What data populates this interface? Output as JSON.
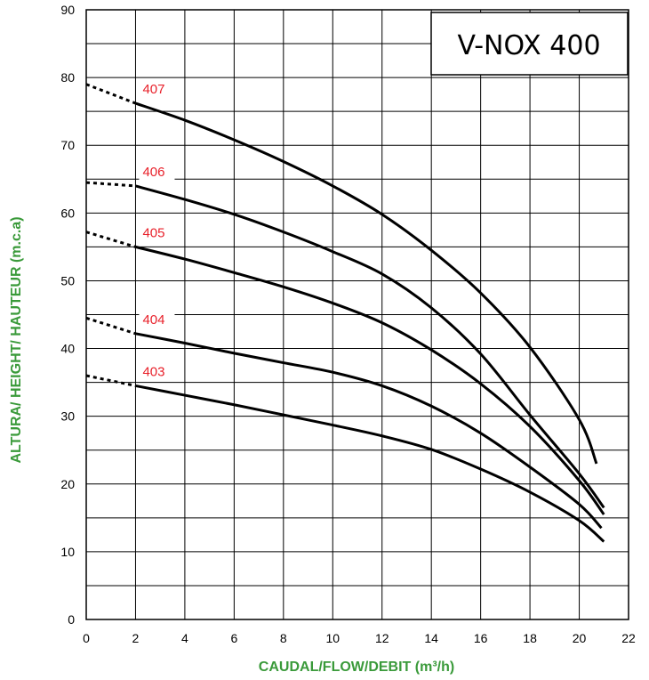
{
  "chart_data": {
    "type": "line",
    "title": "V-NOX 400",
    "xlabel": "CAUDAL/FLOW/DEBIT (m³/h)",
    "ylabel": "ALTURA/ HEIGHT/ HAUTEUR (m.c.a)",
    "xlim": [
      0,
      22
    ],
    "ylim": [
      0,
      90
    ],
    "x_ticks": [
      0,
      2,
      4,
      6,
      8,
      10,
      12,
      14,
      16,
      18,
      20,
      22
    ],
    "y_ticks": [
      0,
      10,
      20,
      30,
      40,
      50,
      60,
      70,
      80,
      90
    ],
    "grid": true,
    "axis_label_color": "#3a9a3a",
    "curve_label_color": "#e8202a",
    "line_color": "#000000",
    "series": [
      {
        "name": "407",
        "dashed": [
          [
            0,
            79
          ],
          [
            2,
            76.2
          ]
        ],
        "points": [
          [
            2,
            76.2
          ],
          [
            4,
            73.7
          ],
          [
            6,
            70.8
          ],
          [
            8,
            67.6
          ],
          [
            10,
            64
          ],
          [
            12,
            59.8
          ],
          [
            14,
            54.5
          ],
          [
            16,
            48.2
          ],
          [
            18,
            40.2
          ],
          [
            20,
            29.5
          ],
          [
            20.7,
            23
          ]
        ]
      },
      {
        "name": "406",
        "dashed": [
          [
            0,
            64.5
          ],
          [
            2,
            64
          ]
        ],
        "points": [
          [
            2,
            64
          ],
          [
            4,
            62
          ],
          [
            6,
            59.8
          ],
          [
            8,
            57.2
          ],
          [
            10,
            54.3
          ],
          [
            12,
            51
          ],
          [
            14,
            46
          ],
          [
            16,
            39.2
          ],
          [
            18,
            30.2
          ],
          [
            20,
            21.5
          ],
          [
            21,
            16.5
          ]
        ]
      },
      {
        "name": "405",
        "dashed": [
          [
            0,
            57.2
          ],
          [
            2,
            55
          ]
        ],
        "points": [
          [
            2,
            55
          ],
          [
            4,
            53.2
          ],
          [
            6,
            51.2
          ],
          [
            8,
            49.1
          ],
          [
            10,
            46.7
          ],
          [
            12,
            43.8
          ],
          [
            14,
            39.8
          ],
          [
            16,
            34.8
          ],
          [
            18,
            28.5
          ],
          [
            20,
            20.5
          ],
          [
            21,
            15.5
          ]
        ]
      },
      {
        "name": "404",
        "dashed": [
          [
            0,
            44.5
          ],
          [
            2,
            42.2
          ]
        ],
        "points": [
          [
            2,
            42.2
          ],
          [
            4,
            40.8
          ],
          [
            6,
            39.3
          ],
          [
            8,
            37.9
          ],
          [
            10,
            36.5
          ],
          [
            12,
            34.5
          ],
          [
            14,
            31.5
          ],
          [
            16,
            27.5
          ],
          [
            18,
            22.5
          ],
          [
            20,
            17
          ],
          [
            20.9,
            13.5
          ]
        ]
      },
      {
        "name": "403",
        "dashed": [
          [
            0,
            36
          ],
          [
            2,
            34.5
          ]
        ],
        "points": [
          [
            2,
            34.5
          ],
          [
            4,
            33.1
          ],
          [
            6,
            31.7
          ],
          [
            8,
            30.2
          ],
          [
            10,
            28.7
          ],
          [
            12,
            27.1
          ],
          [
            14,
            25.1
          ],
          [
            16,
            22.2
          ],
          [
            18,
            18.8
          ],
          [
            20,
            14.6
          ],
          [
            21,
            11.5
          ]
        ]
      }
    ]
  }
}
